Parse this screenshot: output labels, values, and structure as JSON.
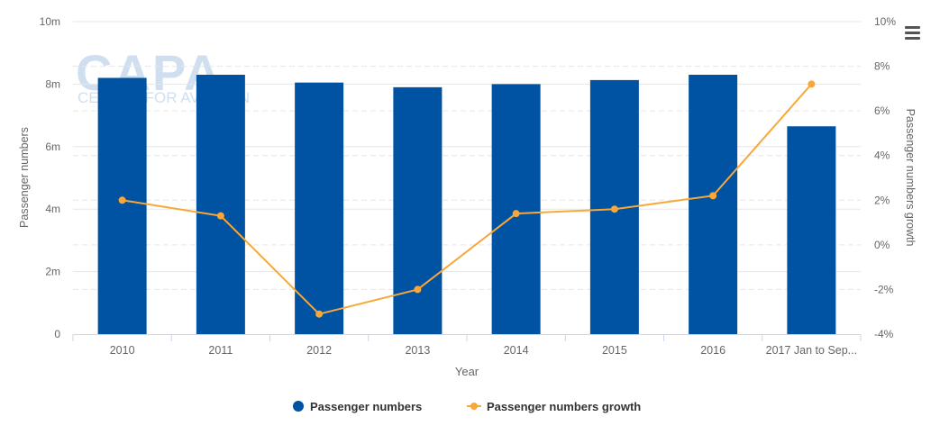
{
  "watermark": {
    "logo": "CAPA",
    "subtext": "CENTRE FOR AVIATION"
  },
  "menu": {
    "icon": "hamburger-menu-icon"
  },
  "chart_data": {
    "type": "bar+line",
    "xlabel": "Year",
    "ylabel_left": "Passenger numbers",
    "ylabel_right": "Passenger numbers growth",
    "categories": [
      "2010",
      "2011",
      "2012",
      "2013",
      "2014",
      "2015",
      "2016",
      "2017 Jan to Sep..."
    ],
    "left_axis": {
      "min": 0,
      "max": 10000000,
      "ticks": [
        "0",
        "2m",
        "4m",
        "6m",
        "8m",
        "10m"
      ]
    },
    "right_axis": {
      "min": -4,
      "max": 10,
      "ticks": [
        "-4%",
        "-2%",
        "0%",
        "2%",
        "4%",
        "6%",
        "8%",
        "10%"
      ]
    },
    "series": [
      {
        "name": "Passenger numbers",
        "type": "bar",
        "color": "#0052a3",
        "values": [
          8200000,
          8300000,
          8050000,
          7900000,
          8000000,
          8130000,
          8300000,
          6650000
        ]
      },
      {
        "name": "Passenger numbers growth",
        "type": "line",
        "color": "#f7a838",
        "values": [
          2.0,
          1.3,
          -3.1,
          -2.0,
          1.4,
          1.6,
          2.2,
          7.2
        ]
      }
    ],
    "legend": {
      "position": "bottom-center"
    },
    "grid": true
  }
}
